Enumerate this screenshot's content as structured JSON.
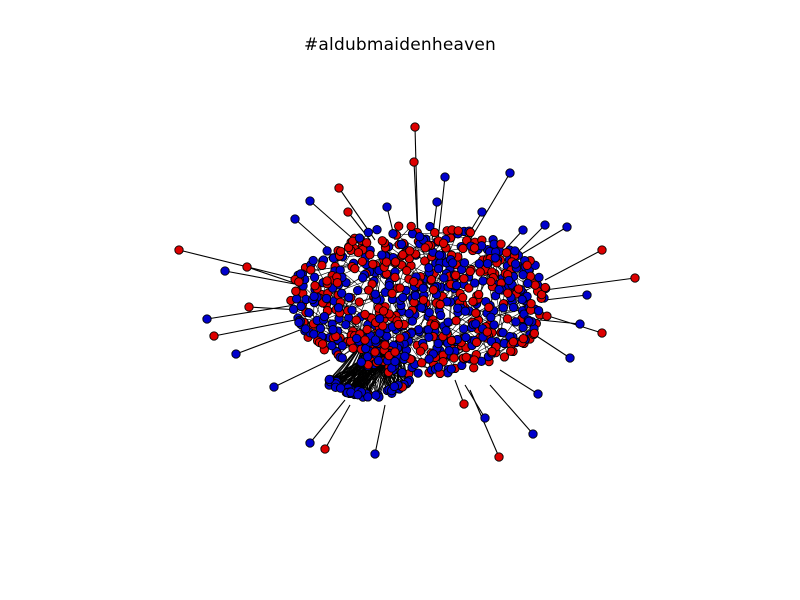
{
  "figure": {
    "title": "#aldubmaidenheaven"
  },
  "colors": {
    "background": "#ffffff",
    "node_class_a": "#dd0000",
    "node_class_b": "#0000cc",
    "node_outline": "#000000",
    "edge": "#000000"
  }
}
